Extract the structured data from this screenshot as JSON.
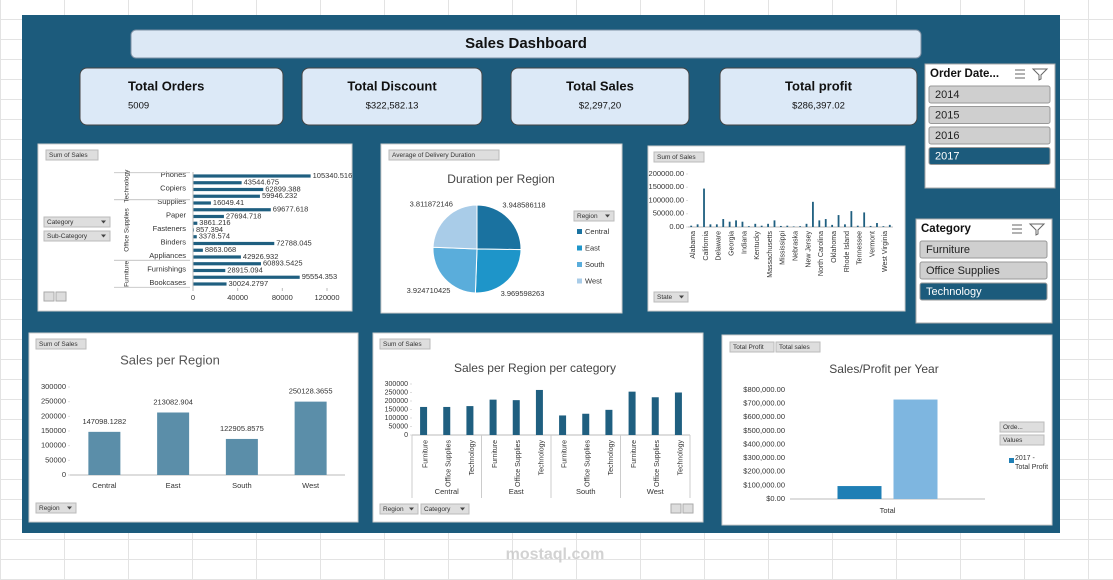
{
  "header": {
    "title": "Sales Dashboard"
  },
  "kpis": [
    {
      "label": "Total Orders",
      "value": "5009"
    },
    {
      "label": "Total Discount",
      "value": "$322,582.13"
    },
    {
      "label": "Total Sales",
      "value": "$2,297,20"
    },
    {
      "label": "Total profit",
      "value": "$286,397.02"
    }
  ],
  "slicers": [
    {
      "title": "Order Date...",
      "items": [
        "2014",
        "2015",
        "2016",
        "2017"
      ],
      "selected": "2017"
    },
    {
      "title": "Category",
      "items": [
        "Furniture",
        "Office Supplies",
        "Technology"
      ],
      "selected": "Technology"
    }
  ],
  "watermark": "mostaql.com",
  "chart_data": [
    {
      "type": "bar",
      "orientation": "horizontal",
      "field_buttons": [
        "Sum of Sales",
        "Category",
        "Sub-Category"
      ],
      "groups": [
        "Technology",
        "Office Supplies",
        "Furniture"
      ],
      "categories": [
        "Phones",
        null,
        "Copiers",
        null,
        "Supplies",
        null,
        "Paper",
        null,
        "Fasteners",
        null,
        "Binders",
        null,
        "Appliances",
        null,
        "Furnishings",
        null,
        "Bookcases"
      ],
      "values": [
        105340.516,
        43544.675,
        62899.388,
        59946.232,
        16049.41,
        69677.618,
        27694.718,
        3861.216,
        857.394,
        3378.574,
        72788.045,
        8863.068,
        42926.932,
        60893.5425,
        28915.094,
        95554.353,
        30024.2797
      ],
      "color": "#1f5f80",
      "xlim": [
        0,
        120000
      ],
      "xticks": [
        0,
        40000,
        80000,
        120000
      ]
    },
    {
      "type": "pie",
      "field_buttons": [
        "Average of Delivery Duration"
      ],
      "title": "Duration per Region",
      "legend_title": "Region",
      "categories": [
        "Central",
        "East",
        "South",
        "West"
      ],
      "values": [
        3.948586118,
        3.969598263,
        3.924710425,
        3.811872146
      ],
      "colors": [
        "#1a72a0",
        "#1e95c9",
        "#5aaddb",
        "#a9cce8"
      ]
    },
    {
      "type": "bar",
      "field_buttons": [
        "Sum of Sales",
        "State"
      ],
      "categories": [
        "Alabama",
        null,
        "California",
        null,
        "Delaware",
        null,
        "Georgia",
        null,
        "Indiana",
        null,
        "Kentucky",
        null,
        "Massachusetts",
        null,
        "Mississippi",
        null,
        "Nebraska",
        null,
        "New Jersey",
        null,
        "North Carolina",
        null,
        "Oklahoma",
        null,
        "Rhode Island",
        null,
        "Tennessee",
        null,
        "Vermont",
        null,
        "West Virginia",
        null
      ],
      "values": [
        5000,
        10000,
        145000,
        10000,
        10000,
        30000,
        20000,
        25000,
        20000,
        3000,
        12000,
        5000,
        12000,
        25000,
        4000,
        5000,
        2000,
        3000,
        12000,
        95000,
        25000,
        30000,
        8000,
        45000,
        10000,
        60000,
        5000,
        55000,
        4000,
        15000,
        3000,
        8000
      ],
      "color": "#1f5f80",
      "ylim": [
        0,
        200000
      ],
      "yticks": [
        {
          "value": 0,
          "label": "0.00"
        },
        {
          "value": 50000,
          "label": "50000.00"
        },
        {
          "value": 100000,
          "label": "100000.00"
        },
        {
          "value": 150000,
          "label": "150000.00"
        },
        {
          "value": 200000,
          "label": "200000.00"
        }
      ]
    },
    {
      "type": "bar",
      "field_buttons": [
        "Sum of Sales",
        "Region"
      ],
      "title": "Sales per Region",
      "categories": [
        "Central",
        "East",
        "South",
        "West"
      ],
      "values": [
        147098.1282,
        213082.904,
        122905.8575,
        250128.3655
      ],
      "color": "#5b8ea9",
      "ylim": [
        0,
        300000
      ],
      "yticks": [
        0,
        50000,
        100000,
        150000,
        200000,
        250000,
        300000
      ]
    },
    {
      "type": "bar",
      "field_buttons": [
        "Sum of Sales",
        "Region",
        "Category"
      ],
      "title": "Sales  per Region per category",
      "groups": [
        "Central",
        "East",
        "South",
        "West"
      ],
      "categories": [
        "Furniture",
        "Office Supplies",
        "Technology",
        "Furniture",
        "Office Supplies",
        "Technology",
        "Furniture",
        "Office Supplies",
        "Technology",
        "Furniture",
        "Office Supplies",
        "Technology"
      ],
      "values": [
        165000,
        165000,
        170000,
        208000,
        205000,
        265000,
        115000,
        125000,
        148000,
        255000,
        222000,
        250000
      ],
      "color": "#1f5f80",
      "ylim": [
        0,
        300000
      ],
      "yticks": [
        0,
        50000,
        100000,
        150000,
        200000,
        250000,
        300000
      ]
    },
    {
      "type": "bar",
      "field_buttons": [
        "Total Profit",
        "Total sales",
        "Orde...",
        "Values"
      ],
      "title": "Sales/Profit per Year",
      "categories": [
        "Total"
      ],
      "series": [
        {
          "name": "2017 - Total Profit",
          "color": "#1f7fb5",
          "values": [
            95000
          ]
        },
        {
          "name": null,
          "color": "#7eb6e0",
          "values": [
            730000
          ]
        }
      ],
      "ylim": [
        0,
        800000
      ],
      "yticks": [
        {
          "value": 0,
          "label": "$0.00"
        },
        {
          "value": 100000,
          "label": "$100,000.00"
        },
        {
          "value": 200000,
          "label": "$200,000.00"
        },
        {
          "value": 300000,
          "label": "$300,000.00"
        },
        {
          "value": 400000,
          "label": "$400,000.00"
        },
        {
          "value": 500000,
          "label": "$500,000.00"
        },
        {
          "value": 600000,
          "label": "$600,000.00"
        },
        {
          "value": 700000,
          "label": "$700,000.00"
        },
        {
          "value": 800000,
          "label": "$800,000.00"
        }
      ]
    }
  ]
}
